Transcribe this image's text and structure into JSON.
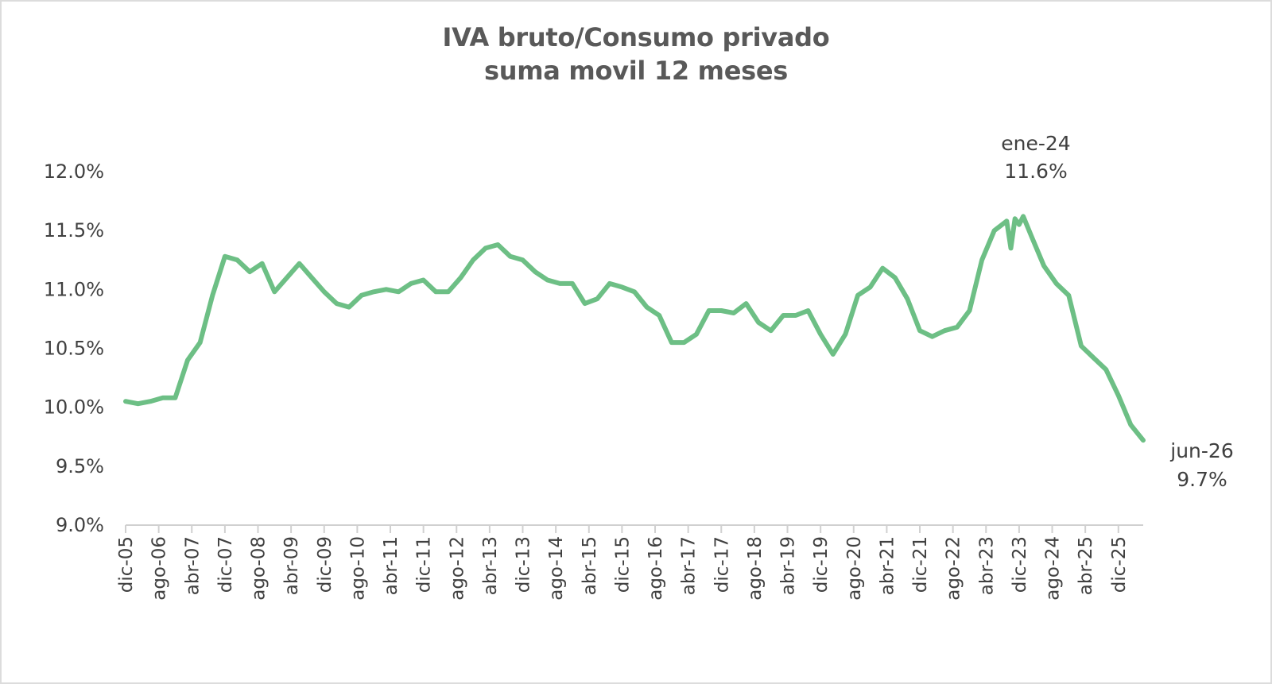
{
  "chart_data": {
    "type": "line",
    "title": "IVA bruto/Consumo privado",
    "subtitle": "suma movil 12 meses",
    "xlabel": "",
    "ylabel": "",
    "ylim": [
      9.0,
      12.0
    ],
    "y_ticks": [
      "9.0%",
      "9.5%",
      "10.0%",
      "10.5%",
      "11.0%",
      "11.5%",
      "12.0%"
    ],
    "y_tick_values": [
      9.0,
      9.5,
      10.0,
      10.5,
      11.0,
      11.5,
      12.0
    ],
    "x_ticks": [
      "dic-05",
      "ago-06",
      "abr-07",
      "dic-07",
      "ago-08",
      "abr-09",
      "dic-09",
      "ago-10",
      "abr-11",
      "dic-11",
      "ago-12",
      "abr-13",
      "dic-13",
      "ago-14",
      "abr-15",
      "dic-15",
      "ago-16",
      "abr-17",
      "dic-17",
      "ago-18",
      "abr-19",
      "dic-19",
      "ago-20",
      "abr-21",
      "dic-21",
      "ago-22",
      "abr-23",
      "dic-23",
      "ago-24",
      "abr-25",
      "dic-25"
    ],
    "grid": false,
    "legend": "none",
    "series": [
      {
        "color": "#6dbf85",
        "x": [
          "dic-05",
          "mar-06",
          "jun-06",
          "sep-06",
          "dic-06",
          "mar-07",
          "jun-07",
          "sep-07",
          "dic-07",
          "mar-08",
          "jun-08",
          "sep-08",
          "dic-08",
          "mar-09",
          "jun-09",
          "sep-09",
          "dic-09",
          "mar-10",
          "jun-10",
          "sep-10",
          "dic-10",
          "mar-11",
          "jun-11",
          "sep-11",
          "dic-11",
          "mar-12",
          "jun-12",
          "sep-12",
          "dic-12",
          "mar-13",
          "jun-13",
          "sep-13",
          "dic-13",
          "mar-14",
          "jun-14",
          "sep-14",
          "dic-14",
          "mar-15",
          "jun-15",
          "sep-15",
          "dic-15",
          "mar-16",
          "jun-16",
          "sep-16",
          "dic-16",
          "mar-17",
          "jun-17",
          "sep-17",
          "dic-17",
          "mar-18",
          "jun-18",
          "sep-18",
          "dic-18",
          "mar-19",
          "jun-19",
          "sep-19",
          "dic-19",
          "mar-20",
          "jun-20",
          "sep-20",
          "dic-20",
          "mar-21",
          "jun-21",
          "sep-21",
          "dic-21",
          "mar-22",
          "jun-22",
          "sep-22",
          "dic-22",
          "mar-23",
          "jun-23",
          "sep-23",
          "oct-23",
          "nov-23",
          "dic-23",
          "ene-24",
          "mar-24",
          "jun-24",
          "sep-24",
          "dic-24",
          "mar-25",
          "jun-25",
          "sep-25",
          "dic-25",
          "mar-26",
          "jun-26"
        ],
        "values": [
          10.05,
          10.03,
          10.05,
          10.08,
          10.08,
          10.4,
          10.55,
          10.95,
          11.28,
          11.25,
          11.15,
          11.22,
          10.98,
          11.1,
          11.22,
          11.1,
          10.98,
          10.88,
          10.85,
          10.95,
          10.98,
          11.0,
          10.98,
          11.05,
          11.08,
          10.98,
          10.98,
          11.1,
          11.25,
          11.35,
          11.38,
          11.28,
          11.25,
          11.15,
          11.08,
          11.05,
          11.05,
          10.88,
          10.92,
          11.05,
          11.02,
          10.98,
          10.85,
          10.78,
          10.55,
          10.55,
          10.62,
          10.82,
          10.82,
          10.8,
          10.88,
          10.72,
          10.65,
          10.78,
          10.78,
          10.82,
          10.62,
          10.45,
          10.62,
          10.95,
          11.02,
          11.18,
          11.1,
          10.92,
          10.65,
          10.6,
          10.65,
          10.68,
          10.82,
          11.25,
          11.5,
          11.58,
          11.35,
          11.6,
          11.55,
          11.62,
          11.45,
          11.2,
          11.05,
          10.95,
          10.52,
          10.42,
          10.32,
          10.1,
          9.85,
          9.72
        ]
      }
    ],
    "annotations": [
      {
        "label": "ene-24",
        "value_label": "11.6%"
      },
      {
        "label": "jun-26",
        "value_label": "9.7%"
      }
    ]
  }
}
